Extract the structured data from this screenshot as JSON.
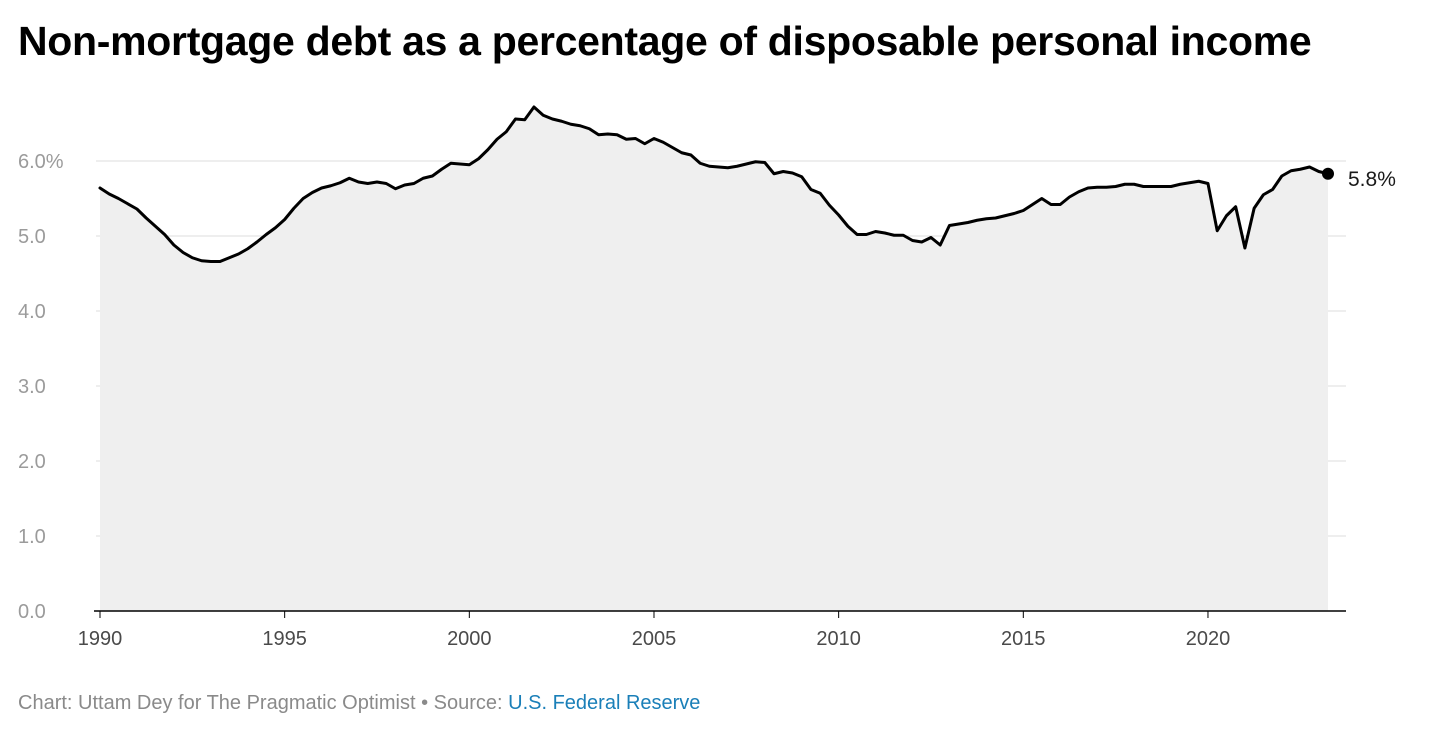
{
  "chart_data": {
    "type": "line",
    "title": "Non-mortgage debt as a percentage of disposable personal income",
    "xlabel": "",
    "ylabel": "",
    "xlim": [
      1990,
      2023.25
    ],
    "ylim": [
      0,
      6.7
    ],
    "y_ticks": [
      {
        "value": 0,
        "label": "0.0"
      },
      {
        "value": 1,
        "label": "1.0"
      },
      {
        "value": 2,
        "label": "2.0"
      },
      {
        "value": 3,
        "label": "3.0"
      },
      {
        "value": 4,
        "label": "4.0"
      },
      {
        "value": 5,
        "label": "5.0"
      },
      {
        "value": 6,
        "label": "6.0%"
      }
    ],
    "x_ticks": [
      {
        "value": 1990,
        "label": "1990"
      },
      {
        "value": 1995,
        "label": "1995"
      },
      {
        "value": 2000,
        "label": "2000"
      },
      {
        "value": 2005,
        "label": "2005"
      },
      {
        "value": 2010,
        "label": "2010"
      },
      {
        "value": 2015,
        "label": "2015"
      },
      {
        "value": 2020,
        "label": "2020"
      }
    ],
    "grid": true,
    "end_label": "5.8%",
    "series": [
      {
        "name": "Non-mortgage debt / disposable personal income",
        "color": "#000000",
        "fill": "#efefef",
        "x": [
          1990.0,
          1990.25,
          1990.5,
          1990.75,
          1991.0,
          1991.25,
          1991.5,
          1991.75,
          1992.0,
          1992.25,
          1992.5,
          1992.75,
          1993.0,
          1993.25,
          1993.5,
          1993.75,
          1994.0,
          1994.25,
          1994.5,
          1994.75,
          1995.0,
          1995.25,
          1995.5,
          1995.75,
          1996.0,
          1996.25,
          1996.5,
          1996.75,
          1997.0,
          1997.25,
          1997.5,
          1997.75,
          1998.0,
          1998.25,
          1998.5,
          1998.75,
          1999.0,
          1999.25,
          1999.5,
          1999.75,
          2000.0,
          2000.25,
          2000.5,
          2000.75,
          2001.0,
          2001.25,
          2001.5,
          2001.75,
          2002.0,
          2002.25,
          2002.5,
          2002.75,
          2003.0,
          2003.25,
          2003.5,
          2003.75,
          2004.0,
          2004.25,
          2004.5,
          2004.75,
          2005.0,
          2005.25,
          2005.5,
          2005.75,
          2006.0,
          2006.25,
          2006.5,
          2006.75,
          2007.0,
          2007.25,
          2007.5,
          2007.75,
          2008.0,
          2008.25,
          2008.5,
          2008.75,
          2009.0,
          2009.25,
          2009.5,
          2009.75,
          2010.0,
          2010.25,
          2010.5,
          2010.75,
          2011.0,
          2011.25,
          2011.5,
          2011.75,
          2012.0,
          2012.25,
          2012.5,
          2012.75,
          2013.0,
          2013.25,
          2013.5,
          2013.75,
          2014.0,
          2014.25,
          2014.5,
          2014.75,
          2015.0,
          2015.25,
          2015.5,
          2015.75,
          2016.0,
          2016.25,
          2016.5,
          2016.75,
          2017.0,
          2017.25,
          2017.5,
          2017.75,
          2018.0,
          2018.25,
          2018.5,
          2018.75,
          2019.0,
          2019.25,
          2019.5,
          2019.75,
          2020.0,
          2020.25,
          2020.5,
          2020.75,
          2021.0,
          2021.25,
          2021.5,
          2021.75,
          2022.0,
          2022.25,
          2022.5,
          2022.75,
          2023.0,
          2023.25
        ],
        "values": [
          5.64,
          5.56,
          5.5,
          5.43,
          5.36,
          5.24,
          5.13,
          5.02,
          4.88,
          4.78,
          4.71,
          4.67,
          4.66,
          4.66,
          4.71,
          4.76,
          4.83,
          4.92,
          5.02,
          5.11,
          5.22,
          5.37,
          5.5,
          5.58,
          5.64,
          5.67,
          5.71,
          5.77,
          5.72,
          5.7,
          5.72,
          5.7,
          5.63,
          5.68,
          5.7,
          5.77,
          5.8,
          5.89,
          5.97,
          5.96,
          5.95,
          6.03,
          6.15,
          6.29,
          6.39,
          6.56,
          6.55,
          6.72,
          6.61,
          6.56,
          6.53,
          6.49,
          6.47,
          6.43,
          6.35,
          6.36,
          6.35,
          6.29,
          6.3,
          6.23,
          6.3,
          6.25,
          6.18,
          6.11,
          6.08,
          5.97,
          5.93,
          5.92,
          5.91,
          5.93,
          5.96,
          5.99,
          5.98,
          5.83,
          5.86,
          5.84,
          5.79,
          5.62,
          5.57,
          5.41,
          5.28,
          5.13,
          5.02,
          5.02,
          5.06,
          5.04,
          5.01,
          5.01,
          4.94,
          4.92,
          4.98,
          4.88,
          5.14,
          5.16,
          5.18,
          5.21,
          5.23,
          5.24,
          5.27,
          5.3,
          5.34,
          5.42,
          5.5,
          5.42,
          5.42,
          5.52,
          5.59,
          5.64,
          5.65,
          5.65,
          5.66,
          5.69,
          5.69,
          5.66,
          5.66,
          5.66,
          5.66,
          5.69,
          5.71,
          5.73,
          5.7,
          5.07,
          5.27,
          5.39,
          4.84,
          5.37,
          5.55,
          5.62,
          5.8,
          5.87,
          5.89,
          5.92,
          5.86,
          5.83
        ]
      }
    ]
  },
  "footer": {
    "prefix": "Chart: Uttam Dey for The Pragmatic Optimist • Source: ",
    "link": "U.S. Federal Reserve"
  }
}
